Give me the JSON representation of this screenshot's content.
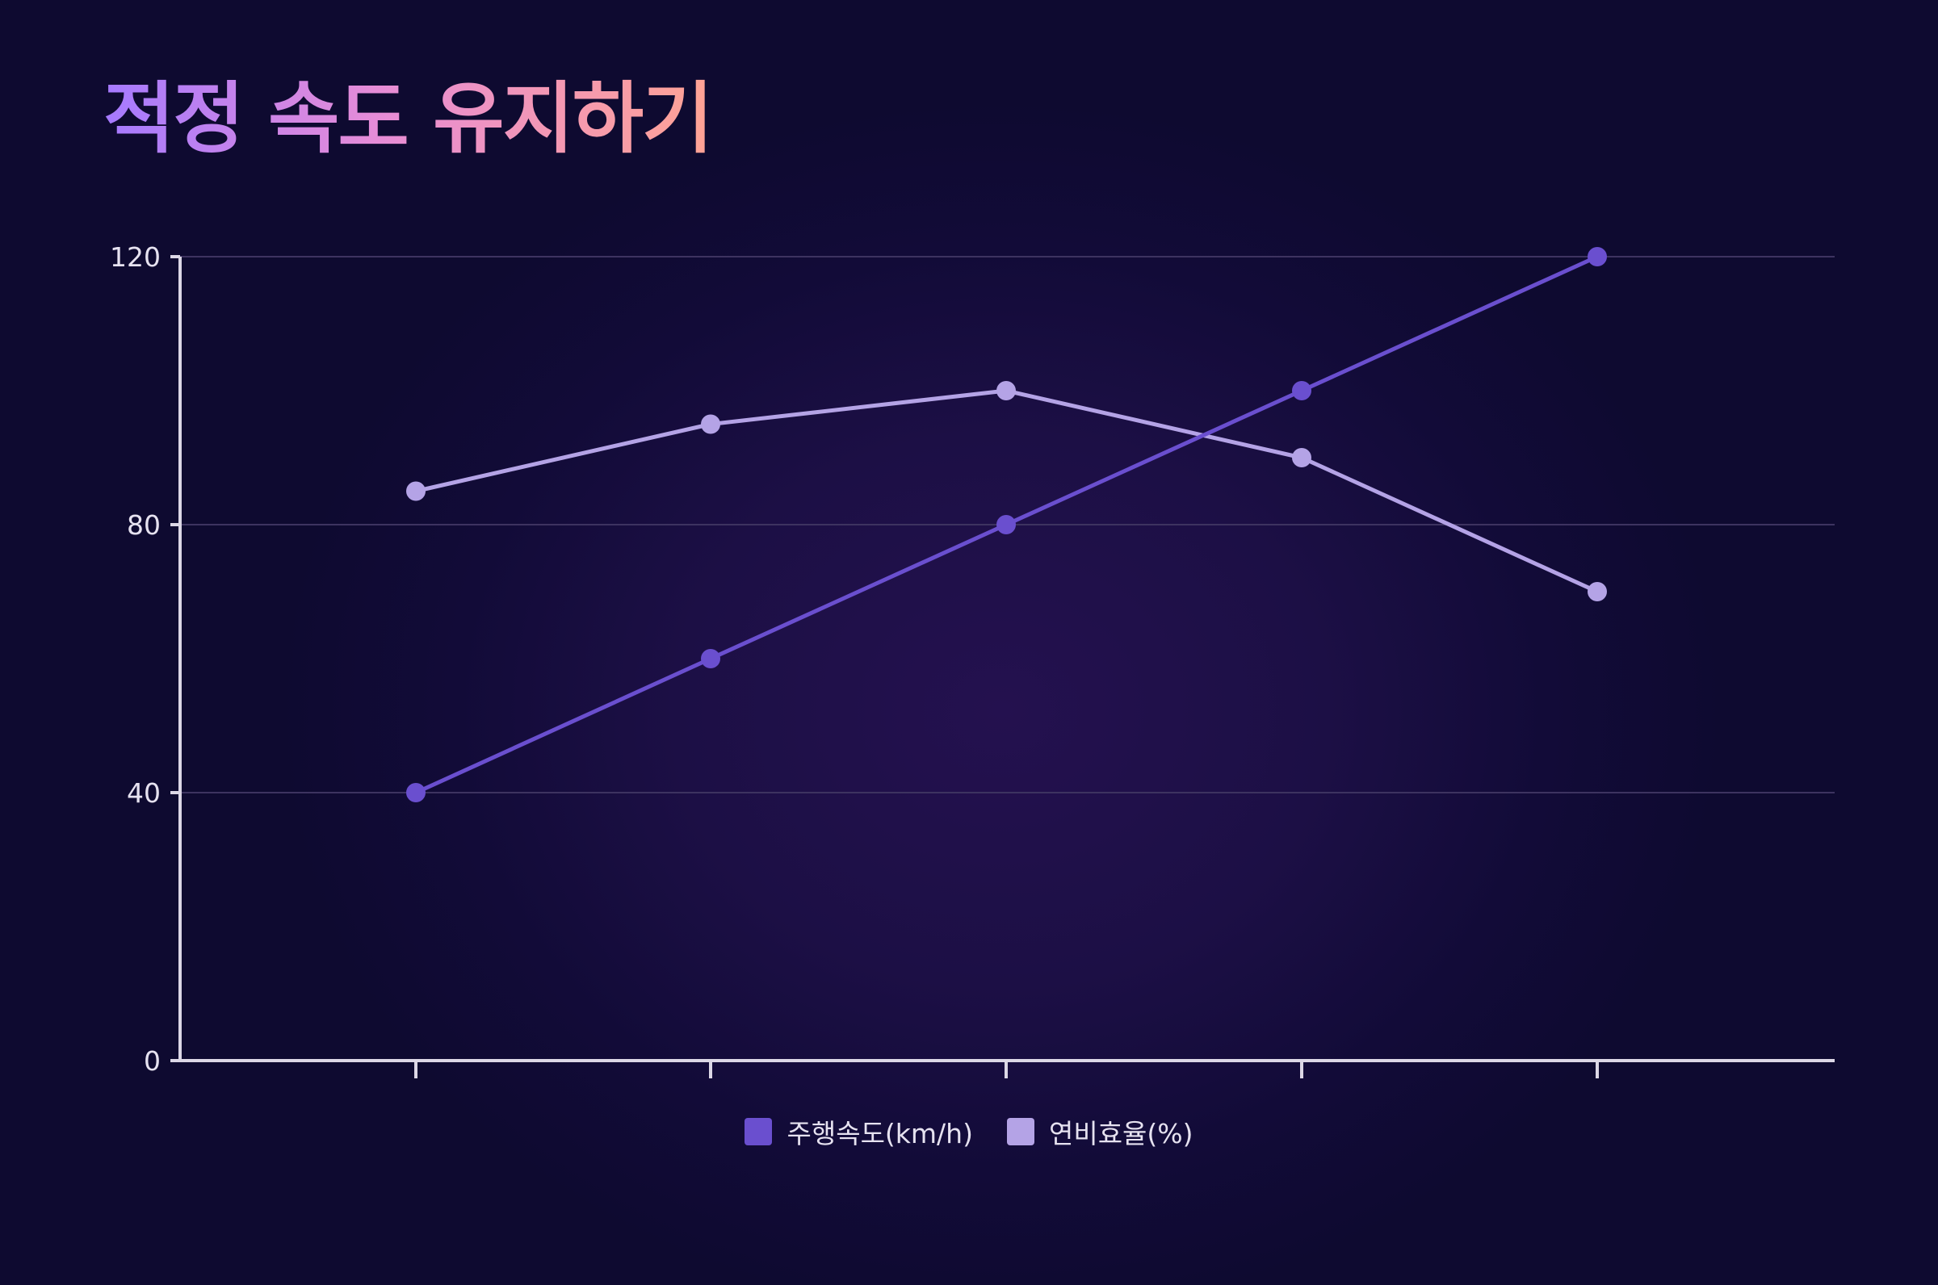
{
  "title": "적정 속도 유지하기",
  "colors": {
    "series_speed": "#6a4fcf",
    "series_efficiency": "#b4a3e6",
    "axis": "#dcd7e6",
    "grid": "#3d3360"
  },
  "chart_data": {
    "type": "line",
    "title": "적정 속도 유지하기",
    "x": [
      1,
      2,
      3,
      4,
      5
    ],
    "x_tick_labels": [
      "",
      "",
      "",
      "",
      ""
    ],
    "ylim": [
      0,
      120
    ],
    "yticks": [
      0,
      40,
      80,
      120
    ],
    "y_tick_labels": [
      "0",
      "40",
      "80",
      "120"
    ],
    "grid": true,
    "legend_position": "bottom",
    "series": [
      {
        "name": "주행속도(km/h)",
        "values": [
          40,
          60,
          80,
          100,
          120
        ],
        "color": "#6a4fcf"
      },
      {
        "name": "연비효율(%)",
        "values": [
          85,
          95,
          100,
          90,
          70
        ],
        "color": "#b4a3e6"
      }
    ]
  }
}
